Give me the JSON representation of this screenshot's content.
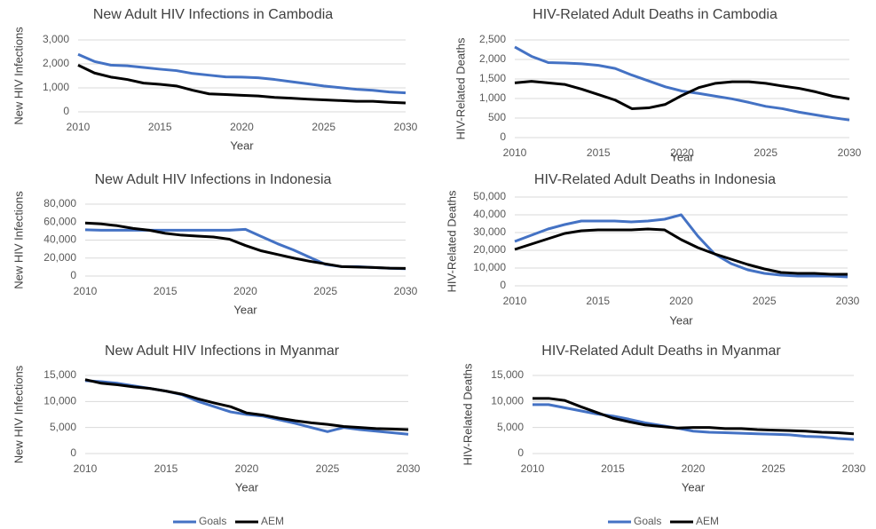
{
  "chart_data": [
    {
      "type": "line",
      "title": "New Adult HIV Infections in Cambodia",
      "x_label": "Year",
      "y_label": "New HIV Infections",
      "x": [
        2010,
        2011,
        2012,
        2013,
        2014,
        2015,
        2016,
        2017,
        2018,
        2019,
        2020,
        2021,
        2022,
        2023,
        2024,
        2025,
        2026,
        2027,
        2028,
        2029,
        2030
      ],
      "xlim": [
        2010,
        2030
      ],
      "xticks": [
        2010,
        2015,
        2020,
        2025,
        2030
      ],
      "ylim": [
        0,
        3000
      ],
      "yticks": [
        0,
        {
          "value": 1000,
          "label": "1,000"
        },
        {
          "value": 2000,
          "label": "2,000"
        },
        {
          "value": 3000,
          "label": "3,000"
        }
      ],
      "grid": true,
      "series": [
        {
          "name": "Goals",
          "color": "#4472c4",
          "values": [
            2400,
            2100,
            1950,
            1920,
            1850,
            1780,
            1720,
            1600,
            1530,
            1460,
            1450,
            1420,
            1350,
            1260,
            1170,
            1080,
            1010,
            940,
            900,
            830,
            790
          ]
        },
        {
          "name": "AEM",
          "color": "#000000",
          "values": [
            1950,
            1620,
            1450,
            1350,
            1200,
            1150,
            1080,
            900,
            750,
            720,
            690,
            660,
            600,
            570,
            530,
            500,
            470,
            440,
            440,
            400,
            370
          ]
        }
      ]
    },
    {
      "type": "line",
      "title": "HIV-Related Adult Deaths in Cambodia",
      "x_label": "Year",
      "y_label": "HIV-Related Deaths",
      "x": [
        2010,
        2011,
        2012,
        2013,
        2014,
        2015,
        2016,
        2017,
        2018,
        2019,
        2020,
        2021,
        2022,
        2023,
        2024,
        2025,
        2026,
        2027,
        2028,
        2029,
        2030
      ],
      "xlim": [
        2010,
        2030
      ],
      "xticks": [
        2010,
        2015,
        2020,
        2025,
        2030
      ],
      "ylim": [
        0,
        2500
      ],
      "yticks": [
        0,
        500,
        {
          "value": 1000,
          "label": "1,000"
        },
        {
          "value": 1500,
          "label": "1,500"
        },
        {
          "value": 2000,
          "label": "2,000"
        },
        {
          "value": 2500,
          "label": "2,500"
        }
      ],
      "grid": true,
      "series": [
        {
          "name": "Goals",
          "color": "#4472c4",
          "values": [
            2320,
            2080,
            1920,
            1910,
            1890,
            1850,
            1770,
            1600,
            1450,
            1300,
            1190,
            1130,
            1060,
            990,
            900,
            800,
            740,
            650,
            580,
            510,
            450
          ]
        },
        {
          "name": "AEM",
          "color": "#000000",
          "values": [
            1400,
            1440,
            1400,
            1360,
            1240,
            1100,
            960,
            740,
            760,
            850,
            1080,
            1280,
            1390,
            1430,
            1430,
            1390,
            1320,
            1260,
            1170,
            1060,
            990
          ]
        }
      ]
    },
    {
      "type": "line",
      "title": "New Adult HIV Infections in Indonesia",
      "x_label": "Year",
      "y_label": "New HIV Infections",
      "x": [
        2010,
        2011,
        2012,
        2013,
        2014,
        2015,
        2016,
        2017,
        2018,
        2019,
        2020,
        2021,
        2022,
        2023,
        2024,
        2025,
        2026,
        2027,
        2028,
        2029,
        2030
      ],
      "xlim": [
        2010,
        2030
      ],
      "xticks": [
        2010,
        2015,
        2020,
        2025,
        2030
      ],
      "ylim": [
        0,
        80000
      ],
      "yticks": [
        0,
        {
          "value": 20000,
          "label": "20,000"
        },
        {
          "value": 40000,
          "label": "40,000"
        },
        {
          "value": 60000,
          "label": "60,000"
        },
        {
          "value": 80000,
          "label": "80,000"
        }
      ],
      "grid": true,
      "series": [
        {
          "name": "Goals",
          "color": "#4472c4",
          "values": [
            51500,
            51000,
            51000,
            51000,
            51000,
            51000,
            51000,
            51000,
            51000,
            51000,
            52000,
            44000,
            36000,
            29000,
            21000,
            13000,
            10500,
            10500,
            9500,
            8700,
            8200
          ]
        },
        {
          "name": "AEM",
          "color": "#000000",
          "values": [
            59000,
            58000,
            56000,
            53000,
            51000,
            47500,
            45500,
            44500,
            43500,
            41000,
            34000,
            28000,
            24000,
            20000,
            16500,
            13500,
            10500,
            10000,
            9500,
            8800,
            8500
          ]
        }
      ]
    },
    {
      "type": "line",
      "title": "HIV-Related Adult Deaths in Indonesia",
      "x_label": "Year",
      "y_label": "HIV-Related Deaths",
      "x": [
        2010,
        2011,
        2012,
        2013,
        2014,
        2015,
        2016,
        2017,
        2018,
        2019,
        2020,
        2021,
        2022,
        2023,
        2024,
        2025,
        2026,
        2027,
        2028,
        2029,
        2030
      ],
      "xlim": [
        2010,
        2030
      ],
      "xticks": [
        2010,
        2015,
        2020,
        2025,
        2030
      ],
      "ylim": [
        0,
        50000
      ],
      "yticks": [
        0,
        {
          "value": 10000,
          "label": "10,000"
        },
        {
          "value": 20000,
          "label": "20,000"
        },
        {
          "value": 30000,
          "label": "30,000"
        },
        {
          "value": 40000,
          "label": "40,000"
        },
        {
          "value": 50000,
          "label": "50,000"
        }
      ],
      "grid": true,
      "series": [
        {
          "name": "Goals",
          "color": "#4472c4",
          "values": [
            25000,
            28500,
            32000,
            34500,
            36500,
            36500,
            36500,
            36000,
            36500,
            37500,
            40000,
            28000,
            18000,
            12500,
            9000,
            7000,
            6000,
            5500,
            5500,
            5500,
            5000
          ]
        },
        {
          "name": "AEM",
          "color": "#000000",
          "values": [
            20500,
            23500,
            26500,
            29500,
            31000,
            31500,
            31500,
            31500,
            32000,
            31500,
            26000,
            21500,
            18000,
            15000,
            12000,
            9500,
            7500,
            7000,
            7000,
            6500,
            6500
          ]
        }
      ]
    },
    {
      "type": "line",
      "title": "New Adult HIV Infections in Myanmar",
      "x_label": "Year",
      "y_label": "New HIV Infections",
      "x": [
        2010,
        2011,
        2012,
        2013,
        2014,
        2015,
        2016,
        2017,
        2018,
        2019,
        2020,
        2021,
        2022,
        2023,
        2024,
        2025,
        2026,
        2027,
        2028,
        2029,
        2030
      ],
      "xlim": [
        2010,
        2030
      ],
      "xticks": [
        2010,
        2015,
        2020,
        2025,
        2030
      ],
      "ylim": [
        0,
        15000
      ],
      "yticks": [
        0,
        {
          "value": 5000,
          "label": "5,000"
        },
        {
          "value": 10000,
          "label": "10,000"
        },
        {
          "value": 15000,
          "label": "15,000"
        }
      ],
      "grid": true,
      "legend": "bottom",
      "series": [
        {
          "name": "Goals",
          "color": "#4472c4",
          "values": [
            14000,
            13800,
            13500,
            13000,
            12500,
            12000,
            11300,
            10000,
            9000,
            8000,
            7500,
            7200,
            6500,
            5800,
            5000,
            4200,
            5000,
            4600,
            4300,
            4000,
            3700
          ]
        },
        {
          "name": "AEM",
          "color": "#000000",
          "values": [
            14200,
            13500,
            13200,
            12800,
            12500,
            12000,
            11400,
            10500,
            9700,
            9000,
            7800,
            7400,
            6800,
            6300,
            5900,
            5600,
            5200,
            5000,
            4800,
            4700,
            4600
          ]
        }
      ]
    },
    {
      "type": "line",
      "title": "HIV-Related Adult Deaths in Myanmar",
      "x_label": "Year",
      "y_label": "HIV-Related Deaths",
      "x": [
        2010,
        2011,
        2012,
        2013,
        2014,
        2015,
        2016,
        2017,
        2018,
        2019,
        2020,
        2021,
        2022,
        2023,
        2024,
        2025,
        2026,
        2027,
        2028,
        2029,
        2030
      ],
      "xlim": [
        2010,
        2030
      ],
      "xticks": [
        2010,
        2015,
        2020,
        2025,
        2030
      ],
      "ylim": [
        0,
        15000
      ],
      "yticks": [
        0,
        {
          "value": 5000,
          "label": "5,000"
        },
        {
          "value": 10000,
          "label": "10,000"
        },
        {
          "value": 15000,
          "label": "15,000"
        }
      ],
      "grid": true,
      "legend": "bottom",
      "series": [
        {
          "name": "Goals",
          "color": "#4472c4",
          "values": [
            9400,
            9400,
            8800,
            8200,
            7600,
            7200,
            6600,
            5900,
            5400,
            4900,
            4300,
            4100,
            4000,
            3900,
            3800,
            3700,
            3600,
            3300,
            3200,
            2900,
            2700
          ]
        },
        {
          "name": "AEM",
          "color": "#000000",
          "values": [
            10600,
            10600,
            10200,
            9000,
            7900,
            6800,
            6100,
            5500,
            5200,
            4900,
            5000,
            5000,
            4800,
            4800,
            4600,
            4500,
            4400,
            4300,
            4100,
            4000,
            3800
          ]
        }
      ]
    }
  ]
}
